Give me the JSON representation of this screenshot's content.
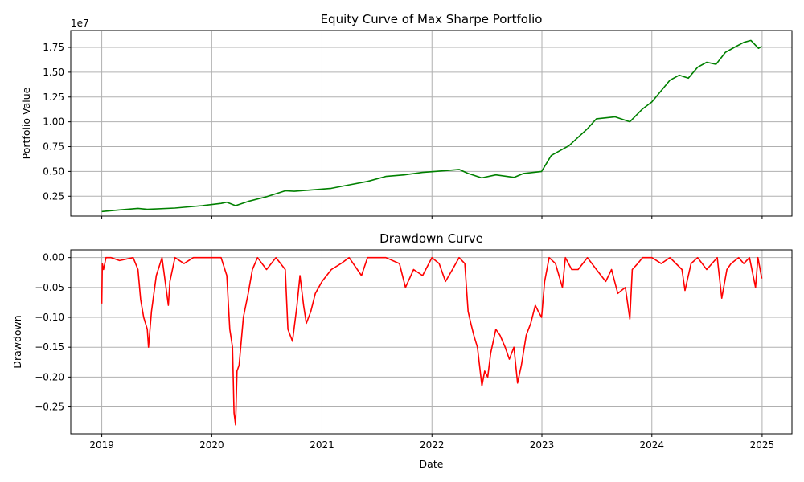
{
  "chart_data": [
    {
      "type": "line",
      "title": "Equity Curve of Max Sharpe Portfolio",
      "xlabel": "",
      "ylabel": "Portfolio Value",
      "offset_label": "1e7",
      "xlim": [
        "2018-09-20",
        "2025-04-10"
      ],
      "ylim": [
        0.05,
        1.92
      ],
      "y_ticks": [
        0.25,
        0.5,
        0.75,
        1.0,
        1.25,
        1.5,
        1.75
      ],
      "y_tick_labels": [
        "0.25",
        "0.50",
        "0.75",
        "1.00",
        "1.25",
        "1.50",
        "1.75"
      ],
      "x_tick_labels_shown": false,
      "grid": true,
      "colors": {
        "line": "#008000"
      },
      "series": [
        {
          "x": [
            "2019-01-01",
            "2019-03-01",
            "2019-05-01",
            "2019-06-01",
            "2019-09-01",
            "2019-12-01",
            "2020-02-01",
            "2020-02-20",
            "2020-03-20",
            "2020-05-01",
            "2020-07-01",
            "2020-09-01",
            "2020-10-01",
            "2020-12-01",
            "2021-02-01",
            "2021-04-01",
            "2021-06-01",
            "2021-08-01",
            "2021-10-01",
            "2021-12-01",
            "2022-02-01",
            "2022-04-01",
            "2022-05-01",
            "2022-06-15",
            "2022-08-01",
            "2022-10-01",
            "2022-11-01",
            "2022-12-31",
            "2023-02-01",
            "2023-04-01",
            "2023-06-01",
            "2023-07-01",
            "2023-09-01",
            "2023-10-20",
            "2023-12-01",
            "2024-01-01",
            "2024-03-01",
            "2024-04-01",
            "2024-05-01",
            "2024-06-01",
            "2024-07-01",
            "2024-08-01",
            "2024-09-01",
            "2024-10-01",
            "2024-11-01",
            "2024-11-25",
            "2024-12-20",
            "2024-12-31"
          ],
          "values": [
            0.096,
            0.112,
            0.128,
            0.118,
            0.131,
            0.155,
            0.178,
            0.19,
            0.155,
            0.198,
            0.245,
            0.305,
            0.3,
            0.315,
            0.33,
            0.365,
            0.4,
            0.45,
            0.465,
            0.49,
            0.505,
            0.52,
            0.48,
            0.435,
            0.465,
            0.44,
            0.48,
            0.5,
            0.66,
            0.76,
            0.93,
            1.03,
            1.05,
            1.0,
            1.13,
            1.2,
            1.42,
            1.47,
            1.44,
            1.55,
            1.6,
            1.58,
            1.7,
            1.75,
            1.8,
            1.82,
            1.74,
            1.76
          ]
        }
      ]
    },
    {
      "type": "line",
      "title": "Drawdown Curve",
      "xlabel": "Date",
      "ylabel": "Drawdown",
      "xlim": [
        "2018-09-20",
        "2025-04-10"
      ],
      "x_ticks": [
        "2019-01-01",
        "2020-01-01",
        "2021-01-01",
        "2022-01-01",
        "2023-01-01",
        "2024-01-01",
        "2025-01-01"
      ],
      "x_tick_labels": [
        "2019",
        "2020",
        "2021",
        "2022",
        "2023",
        "2024",
        "2025"
      ],
      "ylim": [
        -0.295,
        0.013
      ],
      "y_ticks": [
        0.0,
        -0.05,
        -0.1,
        -0.15,
        -0.2,
        -0.25
      ],
      "y_tick_labels": [
        "0.00",
        "−0.05",
        "−0.10",
        "−0.15",
        "−0.20",
        "−0.25"
      ],
      "grid": true,
      "colors": {
        "line": "#ff0000"
      },
      "series": [
        {
          "x": [
            "2019-01-01",
            "2019-01-03",
            "2019-01-07",
            "2019-01-15",
            "2019-02-01",
            "2019-03-01",
            "2019-04-15",
            "2019-05-01",
            "2019-05-10",
            "2019-05-20",
            "2019-06-01",
            "2019-06-05",
            "2019-06-15",
            "2019-07-01",
            "2019-07-20",
            "2019-08-10",
            "2019-08-15",
            "2019-09-01",
            "2019-10-01",
            "2019-11-01",
            "2019-12-01",
            "2020-01-15",
            "2020-02-01",
            "2020-02-20",
            "2020-03-01",
            "2020-03-10",
            "2020-03-15",
            "2020-03-20",
            "2020-03-25",
            "2020-04-01",
            "2020-04-15",
            "2020-05-01",
            "2020-05-15",
            "2020-06-01",
            "2020-07-01",
            "2020-08-01",
            "2020-09-01",
            "2020-09-10",
            "2020-09-25",
            "2020-10-10",
            "2020-10-20",
            "2020-11-01",
            "2020-11-10",
            "2020-11-25",
            "2020-12-10",
            "2021-01-01",
            "2021-02-01",
            "2021-03-05",
            "2021-04-01",
            "2021-05-12",
            "2021-06-01",
            "2021-08-01",
            "2021-09-15",
            "2021-10-05",
            "2021-11-01",
            "2021-12-01",
            "2022-01-01",
            "2022-01-25",
            "2022-02-15",
            "2022-03-10",
            "2022-04-01",
            "2022-04-20",
            "2022-05-01",
            "2022-05-10",
            "2022-05-20",
            "2022-06-01",
            "2022-06-16",
            "2022-06-25",
            "2022-07-05",
            "2022-07-15",
            "2022-08-01",
            "2022-08-15",
            "2022-09-01",
            "2022-09-15",
            "2022-09-30",
            "2022-10-12",
            "2022-10-25",
            "2022-11-10",
            "2022-11-25",
            "2022-12-10",
            "2022-12-20",
            "2022-12-31",
            "2023-01-10",
            "2023-01-25",
            "2023-02-15",
            "2023-03-10",
            "2023-03-20",
            "2023-04-10",
            "2023-05-01",
            "2023-06-01",
            "2023-07-01",
            "2023-08-01",
            "2023-08-20",
            "2023-09-10",
            "2023-10-05",
            "2023-10-20",
            "2023-10-28",
            "2023-11-15",
            "2023-12-01",
            "2024-01-01",
            "2024-02-01",
            "2024-03-01",
            "2024-04-10",
            "2024-04-20",
            "2024-05-10",
            "2024-06-01",
            "2024-07-01",
            "2024-08-05",
            "2024-08-20",
            "2024-09-06",
            "2024-09-20",
            "2024-10-15",
            "2024-11-01",
            "2024-11-20",
            "2024-12-10",
            "2024-12-18",
            "2024-12-31"
          ],
          "values": [
            -0.077,
            -0.01,
            -0.02,
            0.0,
            0.0,
            -0.005,
            0.0,
            -0.02,
            -0.07,
            -0.1,
            -0.12,
            -0.15,
            -0.09,
            -0.03,
            0.0,
            -0.08,
            -0.04,
            0.0,
            -0.01,
            0.0,
            0.0,
            0.0,
            0.0,
            -0.03,
            -0.12,
            -0.15,
            -0.26,
            -0.28,
            -0.19,
            -0.18,
            -0.1,
            -0.06,
            -0.02,
            0.0,
            -0.02,
            0.0,
            -0.02,
            -0.12,
            -0.14,
            -0.08,
            -0.03,
            -0.08,
            -0.11,
            -0.09,
            -0.06,
            -0.04,
            -0.02,
            -0.01,
            0.0,
            -0.03,
            0.0,
            0.0,
            -0.01,
            -0.05,
            -0.02,
            -0.03,
            0.0,
            -0.01,
            -0.04,
            -0.02,
            0.0,
            -0.01,
            -0.09,
            -0.11,
            -0.13,
            -0.15,
            -0.215,
            -0.19,
            -0.2,
            -0.16,
            -0.12,
            -0.13,
            -0.15,
            -0.17,
            -0.15,
            -0.21,
            -0.18,
            -0.13,
            -0.11,
            -0.08,
            -0.09,
            -0.1,
            -0.04,
            0.0,
            -0.01,
            -0.05,
            0.0,
            -0.02,
            -0.02,
            0.0,
            -0.02,
            -0.04,
            -0.02,
            -0.06,
            -0.05,
            -0.103,
            -0.02,
            -0.01,
            0.0,
            0.0,
            -0.01,
            0.0,
            -0.02,
            -0.055,
            -0.01,
            0.0,
            -0.02,
            0.0,
            -0.068,
            -0.02,
            -0.01,
            0.0,
            -0.01,
            0.0,
            -0.05,
            0.0,
            -0.035
          ]
        }
      ]
    }
  ]
}
